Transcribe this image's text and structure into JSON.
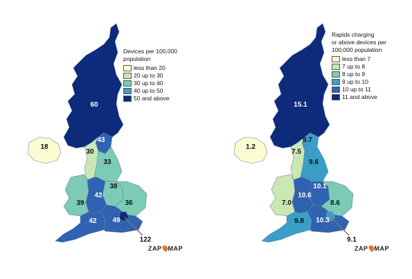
{
  "colors": {
    "c1": "#fcfcd2",
    "c2": "#c9e8b2",
    "c3": "#7ccbb6",
    "c4": "#3a9ec7",
    "c5": "#2f62b0",
    "c6": "#0e2a7a"
  },
  "left_map": {
    "legend_title": [
      "Devices per 100,000",
      "population"
    ],
    "legend_items": [
      {
        "label": "less than 20",
        "color": "#fcfcd2"
      },
      {
        "label": "20 up to 30",
        "color": "#c9e8b2"
      },
      {
        "label": "30 up to 40",
        "color": "#7ccbb6"
      },
      {
        "label": "40 up to 50",
        "color": "#3a9ec7"
      },
      {
        "label": "50 and above",
        "color": "#0e2a7a"
      }
    ],
    "regions": {
      "scotland": {
        "value": "60",
        "color": "#0e2a7a"
      },
      "northern_ireland": {
        "value": "18",
        "color": "#fcfcd2"
      },
      "north_east": {
        "value": "43",
        "color": "#2f62b0"
      },
      "north_west": {
        "value": "30",
        "color": "#c9e8b2"
      },
      "yorkshire": {
        "value": "33",
        "color": "#7ccbb6"
      },
      "east_midlands": {
        "value": "38",
        "color": "#7ccbb6"
      },
      "wales": {
        "value": "39",
        "color": "#7ccbb6"
      },
      "west_midlands": {
        "value": "42",
        "color": "#2f62b0"
      },
      "east": {
        "value": "36",
        "color": "#7ccbb6"
      },
      "south_west": {
        "value": "42",
        "color": "#2f62b0"
      },
      "south_east": {
        "value": "49",
        "color": "#2f62b0"
      },
      "london": {
        "value": "122",
        "color": "#0e2a7a"
      }
    },
    "brand": "ZAPMAP"
  },
  "right_map": {
    "legend_title": [
      "Rapids charging",
      "or above devices per",
      "100,000 population"
    ],
    "legend_items": [
      {
        "label": "less than 7",
        "color": "#fcfcd2"
      },
      {
        "label": "7 up to 8",
        "color": "#c9e8b2"
      },
      {
        "label": "8 up to 9",
        "color": "#7ccbb6"
      },
      {
        "label": "9 up to 10",
        "color": "#3a9ec7"
      },
      {
        "label": "10 up to 11",
        "color": "#2f62b0"
      },
      {
        "label": "11 and above",
        "color": "#0e2a7a"
      }
    ],
    "regions": {
      "scotland": {
        "value": "15.1",
        "color": "#0e2a7a"
      },
      "northern_ireland": {
        "value": "1.2",
        "color": "#fcfcd2"
      },
      "north_east": {
        "value": "9.7",
        "color": "#3a9ec7"
      },
      "north_west": {
        "value": "7.5",
        "color": "#c9e8b2"
      },
      "yorkshire": {
        "value": "9.6",
        "color": "#3a9ec7"
      },
      "east_midlands": {
        "value": "10.1",
        "color": "#2f62b0"
      },
      "wales": {
        "value": "7.0",
        "color": "#c9e8b2"
      },
      "west_midlands": {
        "value": "10.6",
        "color": "#2f62b0"
      },
      "east": {
        "value": "8.6",
        "color": "#7ccbb6"
      },
      "south_west": {
        "value": "9.8",
        "color": "#3a9ec7"
      },
      "south_east": {
        "value": "10.3",
        "color": "#2f62b0"
      },
      "london": {
        "value": "9.1",
        "color": "#3a9ec7"
      }
    },
    "brand": "ZAPMAP"
  }
}
